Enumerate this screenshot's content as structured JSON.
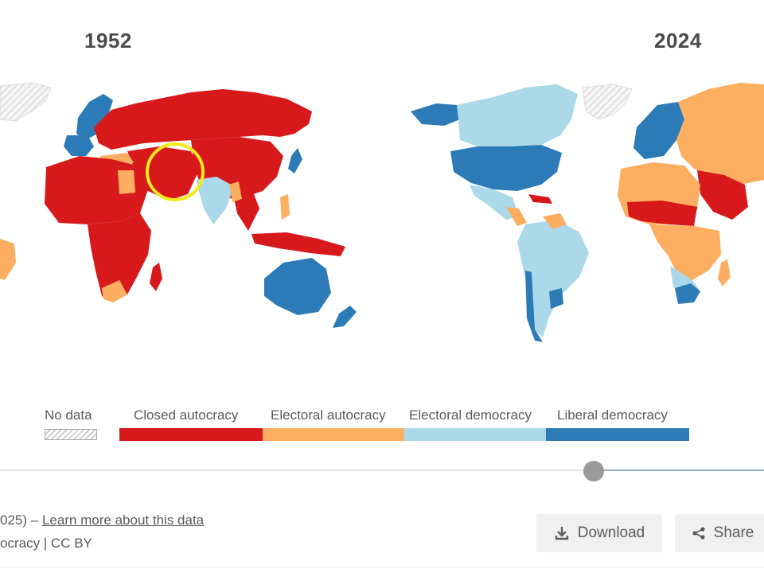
{
  "maps": {
    "left_year": "1952",
    "right_year": "2024"
  },
  "legend": {
    "no_data": "No data",
    "categories": [
      {
        "label": "Closed autocracy",
        "color": "#d7191c"
      },
      {
        "label": "Electoral autocracy",
        "color": "#fdae61"
      },
      {
        "label": "Electoral democracy",
        "color": "#abd9e9"
      },
      {
        "label": "Liberal democracy",
        "color": "#2c7bb6"
      }
    ]
  },
  "colors": {
    "closed_autocracy": "#d7191c",
    "electoral_autocracy": "#fdae61",
    "electoral_democracy": "#abd9e9",
    "liberal_democracy": "#2c7bb6",
    "highlight_circle": "#f3ea1a",
    "slider_handle": "#9b9b9b"
  },
  "source": {
    "line1_prefix": "025) –",
    "learn_more": "Learn more about this data",
    "line2": "ocracy | CC BY"
  },
  "buttons": {
    "download": "Download",
    "share": "Share"
  },
  "icons": {
    "download": "download-icon",
    "share": "share-icon"
  }
}
